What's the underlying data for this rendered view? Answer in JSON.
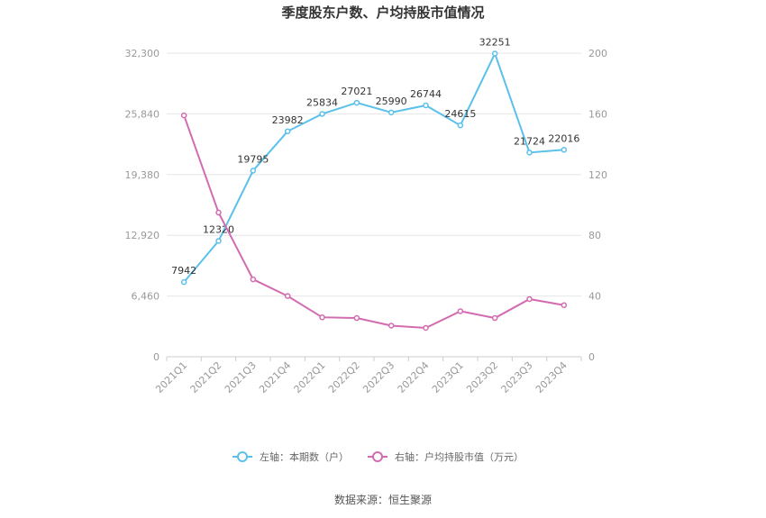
{
  "chart_data": {
    "type": "line",
    "title": "季度股东户数、户均持股市值情况",
    "categories": [
      "2021Q1",
      "2021Q2",
      "2021Q3",
      "2021Q4",
      "2022Q1",
      "2022Q2",
      "2022Q3",
      "2022Q4",
      "2023Q1",
      "2023Q2",
      "2023Q3",
      "2023Q4"
    ],
    "series": [
      {
        "name": "左轴：本期数（户）",
        "axis": "left",
        "color": "#5bc0eb",
        "values": [
          7942,
          12320,
          19795,
          23982,
          25834,
          27021,
          25990,
          26744,
          24615,
          32251,
          21724,
          22016
        ]
      },
      {
        "name": "右轴：户均持股市值（万元）",
        "axis": "right",
        "color": "#d36bb0",
        "values": [
          159,
          95,
          51,
          40,
          26,
          25.5,
          20.5,
          19,
          30,
          25.5,
          38,
          34
        ]
      }
    ],
    "left_axis": {
      "min": 0,
      "max": 32300,
      "ticks": [
        "0",
        "6,460",
        "12,920",
        "19,380",
        "25,840",
        "32,300"
      ]
    },
    "right_axis": {
      "min": 0,
      "max": 200,
      "ticks": [
        "0",
        "40",
        "80",
        "120",
        "160",
        "200"
      ]
    },
    "grid": true,
    "legend_position": "bottom",
    "source": "数据来源：恒生聚源"
  }
}
